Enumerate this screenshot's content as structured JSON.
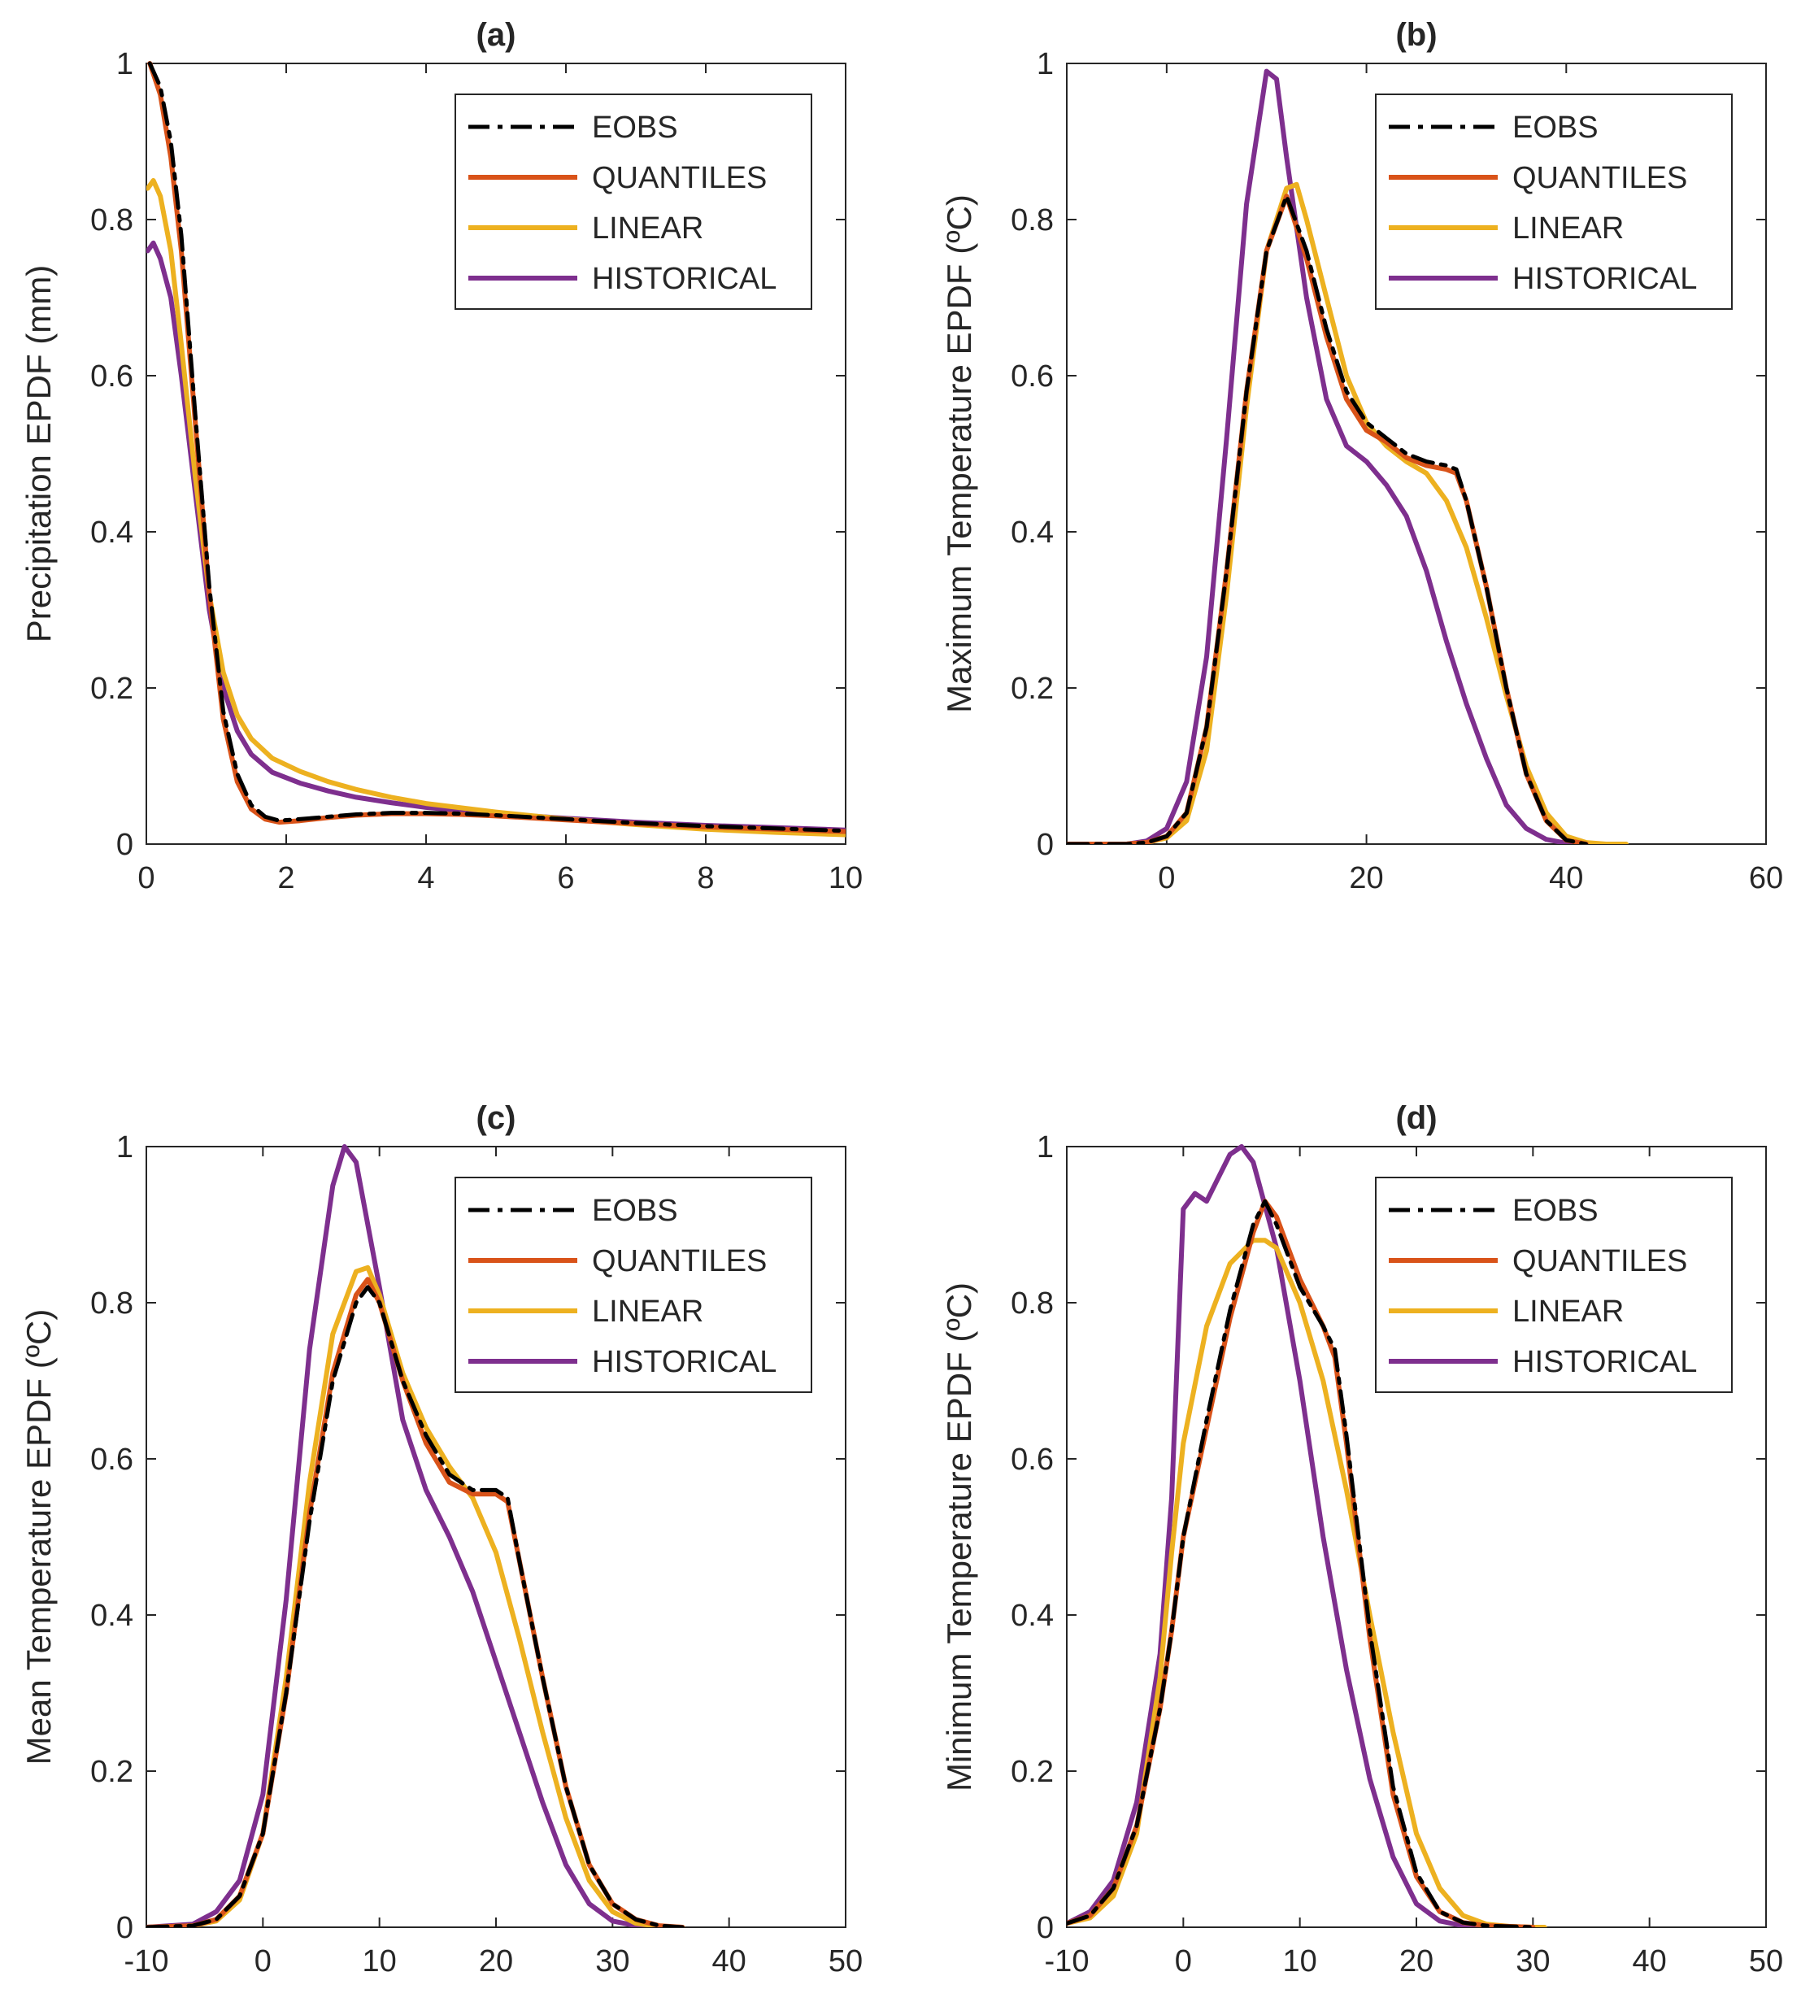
{
  "chart_data": [
    {
      "type": "line",
      "title": "(a)",
      "xlabel": "",
      "ylabel": "Precipitation EPDF (mm)",
      "xlim": [
        0,
        10
      ],
      "ylim": [
        0,
        1
      ],
      "xticks": [
        "0",
        "2",
        "4",
        "6",
        "8",
        "10"
      ],
      "yticks": [
        "0",
        "0.2",
        "0.4",
        "0.6",
        "0.8",
        "1"
      ],
      "legend_position": "top-right",
      "grid": false,
      "series": [
        {
          "name": "EOBS",
          "color": "#000000",
          "style": "dashdot",
          "x": [
            0.05,
            0.2,
            0.35,
            0.5,
            0.7,
            0.9,
            1.1,
            1.3,
            1.5,
            1.7,
            1.9,
            2.2,
            2.6,
            3.0,
            3.5,
            4.0,
            4.5,
            5.0,
            6.0,
            7.0,
            8.0,
            9.0,
            10.0
          ],
          "y": [
            1.0,
            0.97,
            0.9,
            0.78,
            0.55,
            0.33,
            0.17,
            0.09,
            0.05,
            0.035,
            0.03,
            0.032,
            0.035,
            0.038,
            0.04,
            0.04,
            0.039,
            0.037,
            0.032,
            0.027,
            0.023,
            0.02,
            0.017
          ]
        },
        {
          "name": "QUANTILES",
          "color": "#D95319",
          "style": "solid",
          "x": [
            0.05,
            0.2,
            0.35,
            0.5,
            0.7,
            0.9,
            1.1,
            1.3,
            1.5,
            1.7,
            1.9,
            2.2,
            2.6,
            3.0,
            3.5,
            4.0,
            4.5,
            5.0,
            6.0,
            7.0,
            8.0,
            9.0,
            10.0
          ],
          "y": [
            1.0,
            0.96,
            0.88,
            0.76,
            0.54,
            0.32,
            0.16,
            0.08,
            0.045,
            0.032,
            0.028,
            0.03,
            0.034,
            0.037,
            0.039,
            0.039,
            0.038,
            0.036,
            0.031,
            0.026,
            0.022,
            0.019,
            0.016
          ]
        },
        {
          "name": "LINEAR",
          "color": "#EDB120",
          "style": "solid",
          "x": [
            0.02,
            0.1,
            0.2,
            0.35,
            0.5,
            0.7,
            0.9,
            1.1,
            1.3,
            1.5,
            1.8,
            2.2,
            2.6,
            3.0,
            3.5,
            4.0,
            5.0,
            6.0,
            7.0,
            8.0,
            9.0,
            10.0
          ],
          "y": [
            0.84,
            0.85,
            0.83,
            0.76,
            0.64,
            0.47,
            0.32,
            0.22,
            0.165,
            0.135,
            0.11,
            0.093,
            0.08,
            0.07,
            0.06,
            0.052,
            0.041,
            0.032,
            0.025,
            0.019,
            0.015,
            0.012
          ]
        },
        {
          "name": "HISTORICAL",
          "color": "#7E2F8E",
          "style": "solid",
          "x": [
            0.02,
            0.1,
            0.2,
            0.35,
            0.5,
            0.7,
            0.9,
            1.1,
            1.3,
            1.5,
            1.8,
            2.2,
            2.6,
            3.0,
            3.5,
            4.0,
            5.0,
            6.0,
            7.0,
            8.0,
            9.0,
            10.0
          ],
          "y": [
            0.76,
            0.77,
            0.75,
            0.7,
            0.6,
            0.45,
            0.3,
            0.2,
            0.145,
            0.115,
            0.092,
            0.078,
            0.068,
            0.06,
            0.053,
            0.047,
            0.039,
            0.033,
            0.028,
            0.024,
            0.021,
            0.018
          ]
        }
      ]
    },
    {
      "type": "line",
      "title": "(b)",
      "xlabel": "",
      "ylabel": "Maximum Temperature EPDF (ºC)",
      "xlim": [
        -10,
        60
      ],
      "ylim": [
        0,
        1
      ],
      "xticks": [
        "0",
        "20",
        "40",
        "60"
      ],
      "yticks": [
        "0",
        "0.2",
        "0.4",
        "0.6",
        "0.8",
        "1"
      ],
      "legend_position": "top-right",
      "grid": false,
      "series": [
        {
          "name": "EOBS",
          "color": "#000000",
          "style": "dashdot",
          "x": [
            -10,
            -4,
            -2,
            0,
            2,
            4,
            6,
            8,
            10,
            12,
            14,
            16,
            18,
            20,
            22,
            24,
            26,
            28,
            29,
            30,
            32,
            34,
            36,
            38,
            40,
            42
          ],
          "y": [
            0,
            0,
            0.002,
            0.01,
            0.04,
            0.15,
            0.35,
            0.58,
            0.76,
            0.83,
            0.76,
            0.66,
            0.58,
            0.54,
            0.52,
            0.5,
            0.49,
            0.485,
            0.48,
            0.44,
            0.33,
            0.2,
            0.09,
            0.03,
            0.005,
            0
          ]
        },
        {
          "name": "QUANTILES",
          "color": "#D95319",
          "style": "solid",
          "x": [
            -10,
            -4,
            -2,
            0,
            2,
            4,
            6,
            8,
            10,
            12,
            14,
            16,
            18,
            20,
            22,
            24,
            26,
            28,
            29,
            30,
            32,
            34,
            36,
            38,
            40,
            42
          ],
          "y": [
            0,
            0,
            0.002,
            0.01,
            0.04,
            0.15,
            0.35,
            0.58,
            0.76,
            0.83,
            0.75,
            0.65,
            0.57,
            0.53,
            0.515,
            0.495,
            0.485,
            0.48,
            0.475,
            0.44,
            0.33,
            0.2,
            0.09,
            0.03,
            0.005,
            0
          ]
        },
        {
          "name": "LINEAR",
          "color": "#EDB120",
          "style": "solid",
          "x": [
            -10,
            -4,
            -2,
            0,
            2,
            4,
            6,
            8,
            10,
            12,
            13,
            14,
            16,
            18,
            20,
            22,
            24,
            26,
            28,
            30,
            32,
            34,
            36,
            38,
            40,
            42,
            44,
            46
          ],
          "y": [
            0,
            0,
            0.002,
            0.008,
            0.03,
            0.12,
            0.32,
            0.56,
            0.76,
            0.84,
            0.845,
            0.8,
            0.7,
            0.6,
            0.54,
            0.51,
            0.49,
            0.475,
            0.44,
            0.38,
            0.29,
            0.19,
            0.1,
            0.04,
            0.01,
            0.002,
            0,
            0
          ]
        },
        {
          "name": "HISTORICAL",
          "color": "#7E2F8E",
          "style": "solid",
          "x": [
            -10,
            -4,
            -2,
            0,
            2,
            4,
            6,
            8,
            10,
            11,
            12,
            14,
            16,
            18,
            20,
            22,
            24,
            26,
            28,
            30,
            32,
            34,
            36,
            38,
            40,
            42
          ],
          "y": [
            0,
            0,
            0.004,
            0.02,
            0.08,
            0.24,
            0.52,
            0.82,
            0.99,
            0.98,
            0.88,
            0.7,
            0.57,
            0.51,
            0.49,
            0.46,
            0.42,
            0.35,
            0.26,
            0.18,
            0.11,
            0.05,
            0.02,
            0.006,
            0.001,
            0
          ]
        }
      ]
    },
    {
      "type": "line",
      "title": "(c)",
      "xlabel": "",
      "ylabel": "Mean Temperature EPDF (ºC)",
      "xlim": [
        -10,
        50
      ],
      "ylim": [
        0,
        1
      ],
      "xticks": [
        "-10",
        "0",
        "10",
        "20",
        "30",
        "40",
        "50"
      ],
      "yticks": [
        "0",
        "0.2",
        "0.4",
        "0.6",
        "0.8",
        "1"
      ],
      "legend_position": "top-right",
      "grid": false,
      "series": [
        {
          "name": "EOBS",
          "color": "#000000",
          "style": "dashdot",
          "x": [
            -10,
            -6,
            -4,
            -2,
            0,
            2,
            4,
            6,
            8,
            9,
            10,
            12,
            14,
            16,
            18,
            20,
            21,
            22,
            24,
            26,
            28,
            30,
            32,
            34,
            36
          ],
          "y": [
            0,
            0.002,
            0.01,
            0.04,
            0.12,
            0.3,
            0.52,
            0.7,
            0.8,
            0.82,
            0.8,
            0.7,
            0.63,
            0.58,
            0.56,
            0.56,
            0.55,
            0.47,
            0.32,
            0.18,
            0.08,
            0.03,
            0.01,
            0.002,
            0
          ]
        },
        {
          "name": "QUANTILES",
          "color": "#D95319",
          "style": "solid",
          "x": [
            -10,
            -6,
            -4,
            -2,
            0,
            2,
            4,
            6,
            8,
            9,
            10,
            12,
            14,
            16,
            18,
            20,
            21,
            22,
            24,
            26,
            28,
            30,
            32,
            34,
            36
          ],
          "y": [
            0,
            0.002,
            0.01,
            0.04,
            0.12,
            0.3,
            0.53,
            0.71,
            0.81,
            0.83,
            0.8,
            0.7,
            0.62,
            0.57,
            0.555,
            0.555,
            0.545,
            0.47,
            0.32,
            0.18,
            0.08,
            0.03,
            0.01,
            0.002,
            0
          ]
        },
        {
          "name": "LINEAR",
          "color": "#EDB120",
          "style": "solid",
          "x": [
            -10,
            -6,
            -4,
            -2,
            0,
            2,
            4,
            6,
            8,
            9,
            10,
            12,
            14,
            16,
            18,
            20,
            22,
            24,
            26,
            28,
            30,
            32,
            34,
            36
          ],
          "y": [
            0,
            0.002,
            0.008,
            0.035,
            0.12,
            0.32,
            0.57,
            0.76,
            0.84,
            0.845,
            0.81,
            0.71,
            0.64,
            0.59,
            0.55,
            0.48,
            0.37,
            0.25,
            0.14,
            0.06,
            0.02,
            0.005,
            0.001,
            0
          ]
        },
        {
          "name": "HISTORICAL",
          "color": "#7E2F8E",
          "style": "solid",
          "x": [
            -10,
            -6,
            -4,
            -2,
            0,
            2,
            4,
            6,
            7,
            8,
            10,
            12,
            14,
            16,
            18,
            20,
            22,
            24,
            26,
            28,
            30,
            32,
            34
          ],
          "y": [
            0,
            0.004,
            0.02,
            0.06,
            0.17,
            0.42,
            0.74,
            0.95,
            1.0,
            0.98,
            0.82,
            0.65,
            0.56,
            0.5,
            0.43,
            0.34,
            0.25,
            0.16,
            0.08,
            0.03,
            0.008,
            0.002,
            0
          ]
        }
      ]
    },
    {
      "type": "line",
      "title": "(d)",
      "xlabel": "",
      "ylabel": "Minimum Temperature EPDF (ºC)",
      "xlim": [
        -10,
        50
      ],
      "ylim": [
        0,
        1
      ],
      "xticks": [
        "-10",
        "0",
        "10",
        "20",
        "30",
        "40",
        "50"
      ],
      "yticks": [
        "0",
        "0.2",
        "0.4",
        "0.6",
        "0.8",
        "1"
      ],
      "legend_position": "top-right",
      "grid": false,
      "series": [
        {
          "name": "EOBS",
          "color": "#000000",
          "style": "dashdot",
          "x": [
            -10,
            -8,
            -6,
            -4,
            -2,
            -1,
            0,
            2,
            4,
            6,
            7,
            8,
            10,
            12,
            13,
            14,
            16,
            18,
            20,
            22,
            24,
            26,
            28,
            30
          ],
          "y": [
            0.005,
            0.015,
            0.05,
            0.13,
            0.28,
            0.38,
            0.5,
            0.65,
            0.79,
            0.9,
            0.93,
            0.9,
            0.82,
            0.77,
            0.74,
            0.63,
            0.38,
            0.18,
            0.07,
            0.02,
            0.006,
            0.002,
            0.001,
            0
          ]
        },
        {
          "name": "QUANTILES",
          "color": "#D95319",
          "style": "solid",
          "x": [
            -10,
            -8,
            -6,
            -4,
            -2,
            -1,
            0,
            2,
            4,
            6,
            7,
            8,
            10,
            12,
            13,
            14,
            16,
            18,
            20,
            22,
            24,
            26,
            28,
            30
          ],
          "y": [
            0.005,
            0.015,
            0.05,
            0.13,
            0.28,
            0.38,
            0.5,
            0.64,
            0.78,
            0.89,
            0.93,
            0.91,
            0.83,
            0.77,
            0.73,
            0.62,
            0.37,
            0.17,
            0.065,
            0.02,
            0.006,
            0.002,
            0.001,
            0
          ]
        },
        {
          "name": "LINEAR",
          "color": "#EDB120",
          "style": "solid",
          "x": [
            -10,
            -8,
            -6,
            -4,
            -2,
            -1,
            0,
            2,
            4,
            6,
            7,
            8,
            10,
            12,
            14,
            16,
            18,
            20,
            22,
            24,
            26,
            28,
            30,
            31
          ],
          "y": [
            0.005,
            0.012,
            0.04,
            0.12,
            0.32,
            0.48,
            0.62,
            0.77,
            0.85,
            0.88,
            0.88,
            0.87,
            0.8,
            0.7,
            0.56,
            0.4,
            0.25,
            0.12,
            0.05,
            0.015,
            0.004,
            0.001,
            0,
            0
          ]
        },
        {
          "name": "HISTORICAL",
          "color": "#7E2F8E",
          "style": "solid",
          "x": [
            -10,
            -8,
            -6,
            -4,
            -2,
            -1,
            0,
            1,
            2,
            3,
            4,
            5,
            6,
            8,
            10,
            12,
            14,
            16,
            18,
            20,
            22,
            24,
            26
          ],
          "y": [
            0.005,
            0.02,
            0.06,
            0.16,
            0.35,
            0.55,
            0.92,
            0.94,
            0.93,
            0.96,
            0.99,
            1.0,
            0.98,
            0.87,
            0.7,
            0.5,
            0.33,
            0.19,
            0.09,
            0.03,
            0.008,
            0.002,
            0
          ]
        }
      ]
    }
  ]
}
